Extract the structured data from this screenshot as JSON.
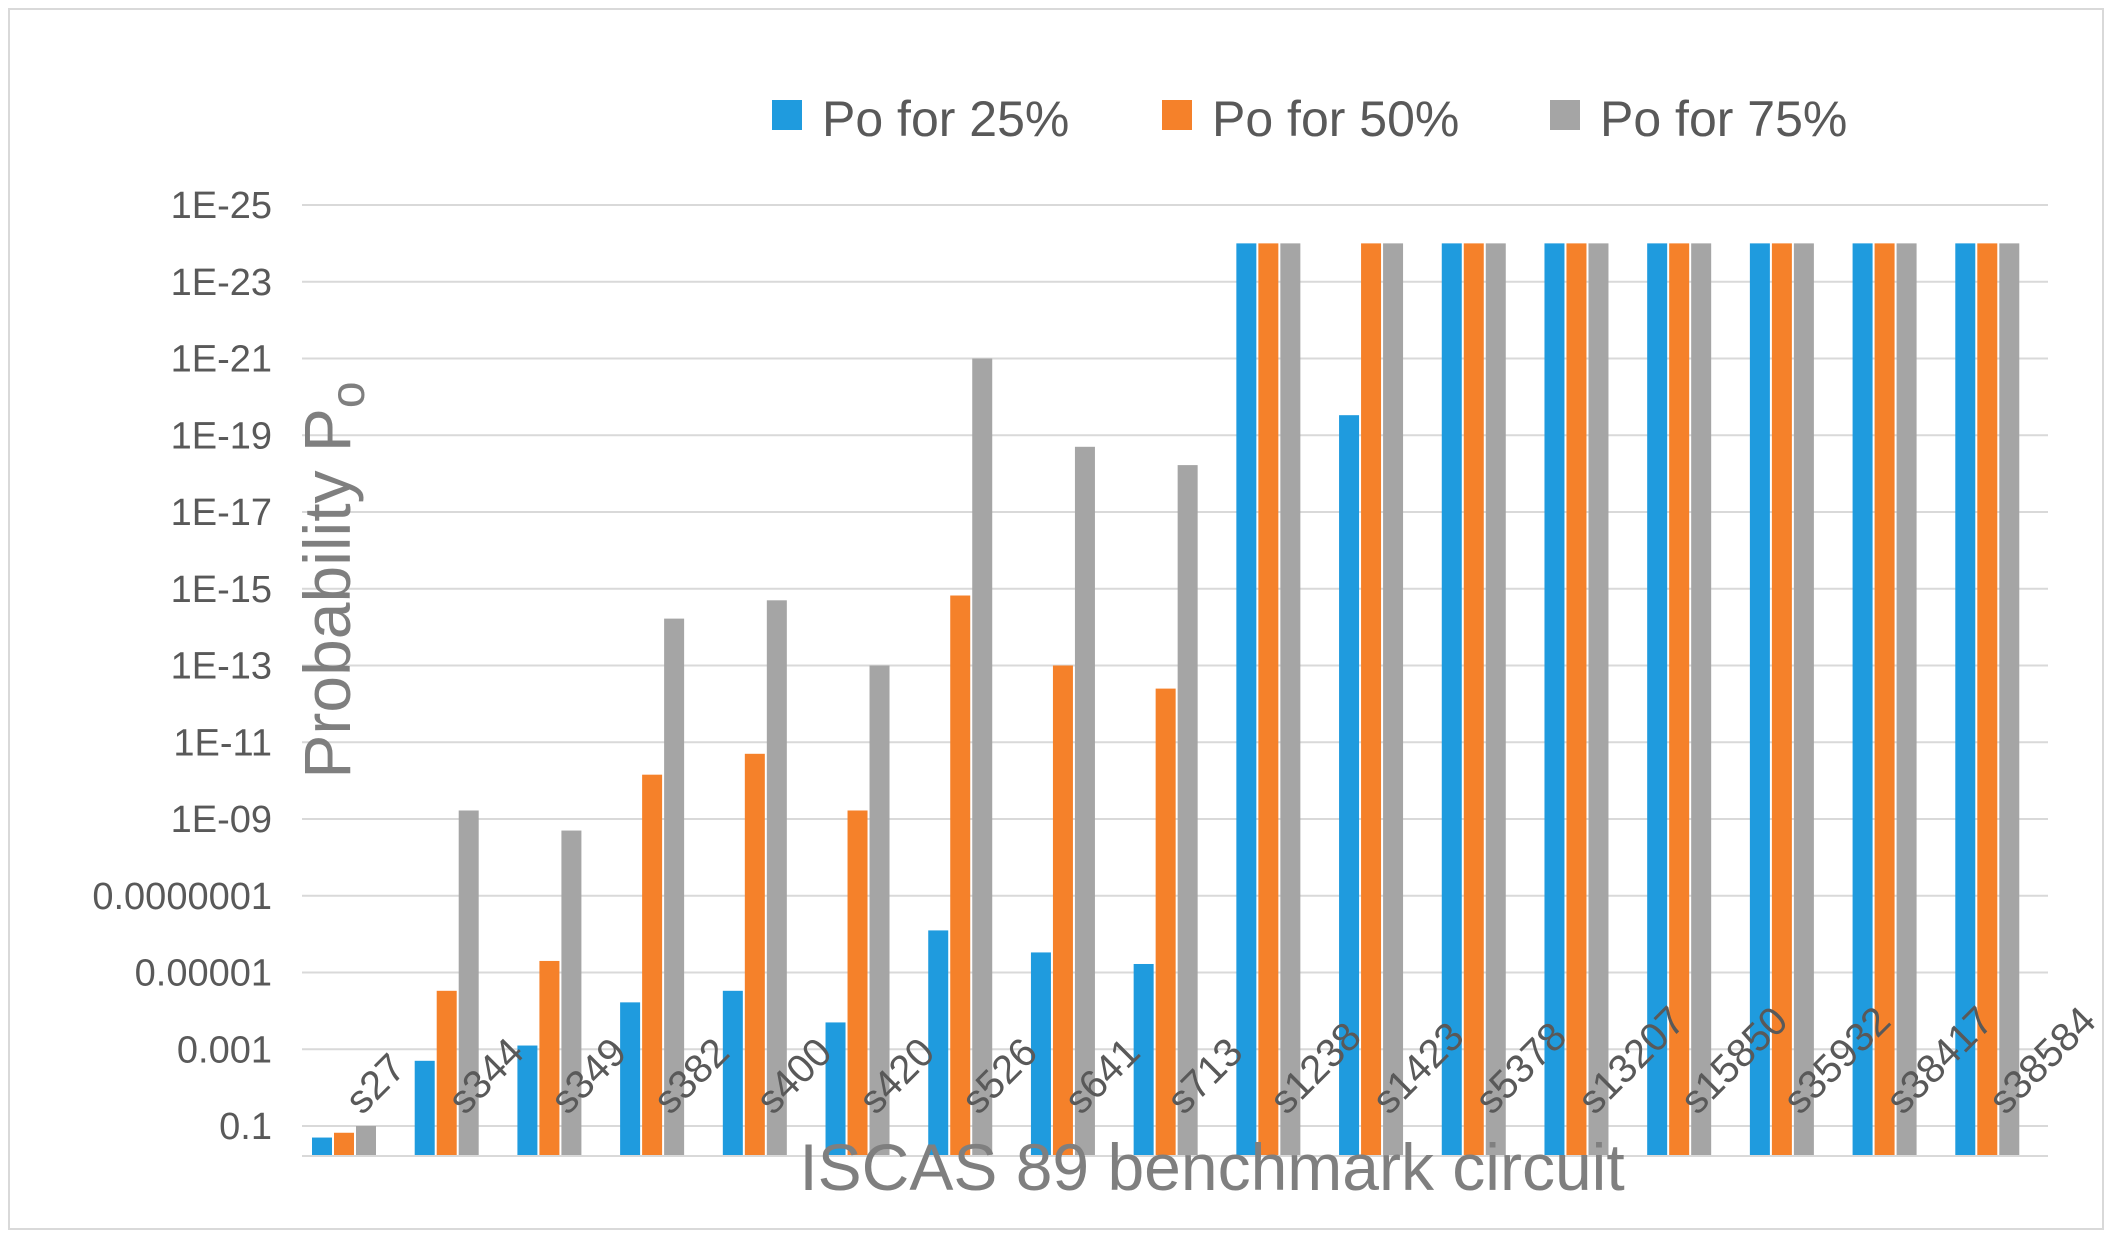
{
  "chart_data": {
    "type": "bar",
    "scale": "log",
    "y_axis_reversed": true,
    "ylim": [
      1e-25,
      0.1
    ],
    "y_ticks": [
      {
        "value": 0.1,
        "label": "0.1"
      },
      {
        "value": 0.001,
        "label": "0.001"
      },
      {
        "value": 1e-05,
        "label": "0.00001"
      },
      {
        "value": 1e-07,
        "label": "0.0000001"
      },
      {
        "value": 1e-09,
        "label": "1E-09"
      },
      {
        "value": 1e-11,
        "label": "1E-11"
      },
      {
        "value": 1e-13,
        "label": "1E-13"
      },
      {
        "value": 1e-15,
        "label": "1E-15"
      },
      {
        "value": 1e-17,
        "label": "1E-17"
      },
      {
        "value": 1e-19,
        "label": "1E-19"
      },
      {
        "value": 1e-21,
        "label": "1E-21"
      },
      {
        "value": 1e-23,
        "label": "1E-23"
      },
      {
        "value": 1e-25,
        "label": "1E-25"
      }
    ],
    "xlabel": "ISCAS 89 benchmark circuit",
    "ylabel_main": "Probability P",
    "ylabel_sub": "o",
    "legend_position": "top",
    "grid": true,
    "categories": [
      "s27",
      "s344",
      "s349",
      "s382",
      "s400",
      "s420",
      "s526",
      "s641",
      "s713",
      "s1238",
      "s1423",
      "s5378",
      "s13207",
      "s15850",
      "s35932",
      "s38417",
      "s38584"
    ],
    "series": [
      {
        "name": "Po for 25%",
        "color": "#1f9bde",
        "values": [
          0.2,
          0.002,
          0.0008,
          6e-05,
          3e-05,
          0.0002,
          8e-07,
          3e-06,
          6e-06,
          1e-24,
          3e-20,
          1e-24,
          1e-24,
          1e-24,
          1e-24,
          1e-24,
          1e-24
        ]
      },
      {
        "name": "Po for 50%",
        "color": "#f5812a",
        "values": [
          0.15,
          3e-05,
          5e-06,
          7e-11,
          2e-11,
          6e-10,
          1.5e-15,
          1e-13,
          4e-13,
          1e-24,
          1e-24,
          1e-24,
          1e-24,
          1e-24,
          1e-24,
          1e-24,
          1e-24
        ]
      },
      {
        "name": "Po for 75%",
        "color": "#a5a5a5",
        "values": [
          0.1,
          6e-10,
          2e-09,
          6e-15,
          2e-15,
          1e-13,
          1e-21,
          2e-19,
          6e-19,
          1e-24,
          1e-24,
          1e-24,
          1e-24,
          1e-24,
          1e-24,
          1e-24,
          1e-24
        ]
      }
    ]
  }
}
